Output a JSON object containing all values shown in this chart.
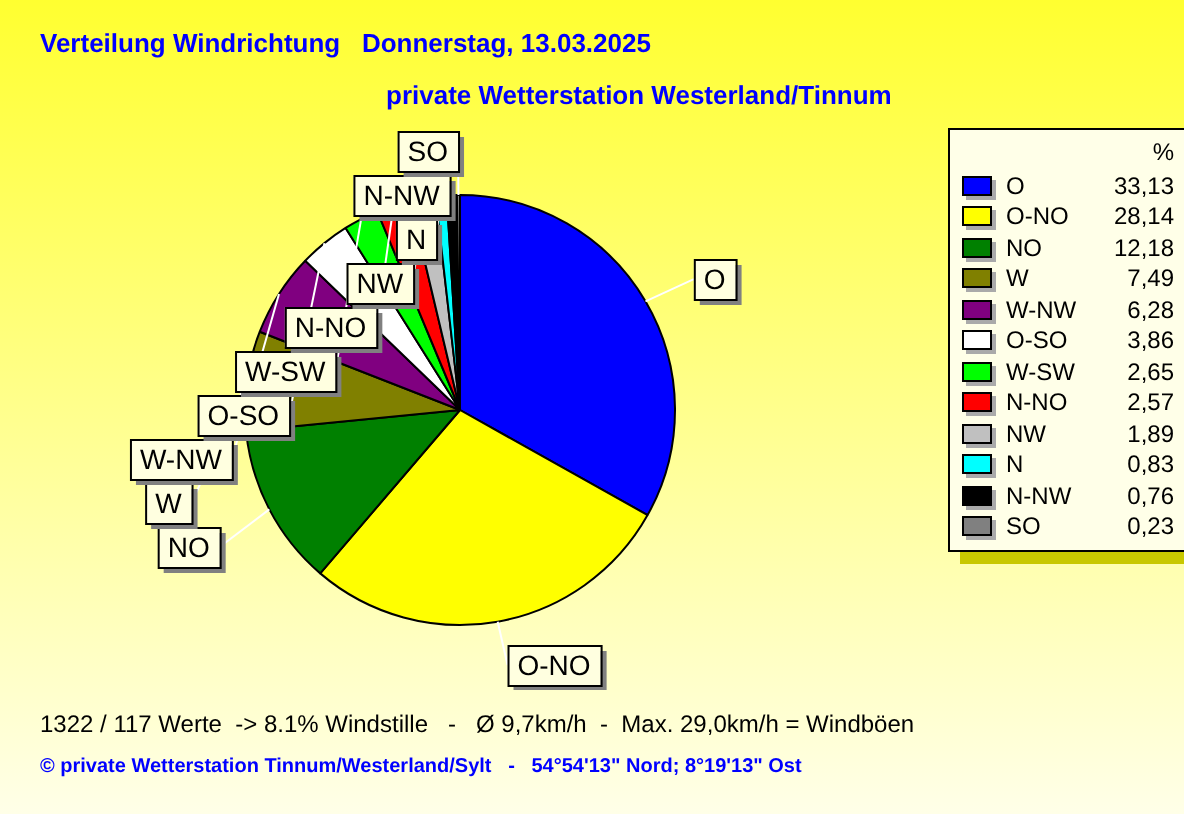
{
  "chart_data": {
    "type": "pie",
    "title": "Verteilung Windrichtung   Donnerstag, 13.03.2025",
    "subtitle": "private Wetterstation Westerland/Tinnum",
    "legend_title": "%",
    "categories": [
      "O",
      "O-NO",
      "NO",
      "W",
      "W-NW",
      "O-SO",
      "W-SW",
      "N-NO",
      "NW",
      "N",
      "N-NW",
      "SO"
    ],
    "values": [
      33.13,
      28.14,
      12.18,
      7.49,
      6.28,
      3.86,
      2.65,
      2.57,
      1.89,
      0.83,
      0.76,
      0.23
    ],
    "value_labels": [
      "33,13",
      "28,14",
      "12,18",
      "7,49",
      "6,28",
      "3,86",
      "2,65",
      "2,57",
      "1,89",
      "0,83",
      "0,76",
      "0,23"
    ],
    "colors": [
      "#0000ff",
      "#ffff00",
      "#008000",
      "#808000",
      "#800080",
      "#ffffff",
      "#00ff00",
      "#ff0000",
      "#c0c0c0",
      "#00ffff",
      "#000000",
      "#808080"
    ],
    "legend": "right",
    "annotations": [
      "1322 / 117 Werte  -> 8.1% Windstille   -   Ø 9,7km/h  -  Max. 29,0km/h = Windböen",
      "© private Wetterstation Tinnum/Westerland/Sylt   -   54°54'13\" Nord; 8°19'13\" Ost"
    ]
  }
}
